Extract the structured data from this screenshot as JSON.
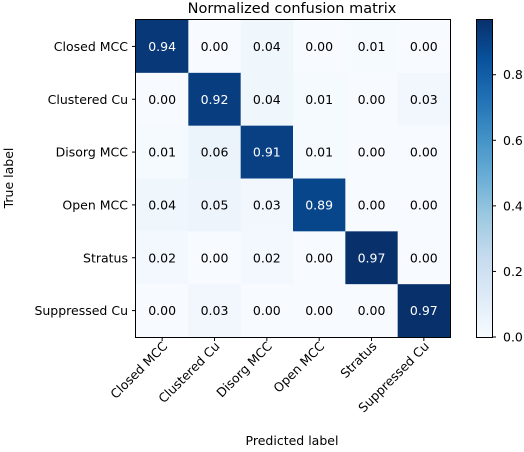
{
  "chart_data": {
    "type": "heatmap",
    "title": "Normalized confusion matrix",
    "xlabel": "Predicted label",
    "ylabel": "True label",
    "row_labels": [
      "Closed MCC",
      "Clustered Cu",
      "Disorg MCC",
      "Open MCC",
      "Stratus",
      "Suppressed Cu"
    ],
    "col_labels": [
      "Closed MCC",
      "Clustered Cu",
      "Disorg MCC",
      "Open MCC",
      "Stratus",
      "Suppressed Cu"
    ],
    "values": [
      [
        0.94,
        0.0,
        0.04,
        0.0,
        0.01,
        0.0
      ],
      [
        0.0,
        0.92,
        0.04,
        0.01,
        0.0,
        0.03
      ],
      [
        0.01,
        0.06,
        0.91,
        0.01,
        0.0,
        0.0
      ],
      [
        0.04,
        0.05,
        0.03,
        0.89,
        0.0,
        0.0
      ],
      [
        0.02,
        0.0,
        0.02,
        0.0,
        0.97,
        0.0
      ],
      [
        0.0,
        0.03,
        0.0,
        0.0,
        0.0,
        0.97
      ]
    ],
    "value_labels": [
      [
        "0.94",
        "0.00",
        "0.04",
        "0.00",
        "0.01",
        "0.00"
      ],
      [
        "0.00",
        "0.92",
        "0.04",
        "0.01",
        "0.00",
        "0.03"
      ],
      [
        "0.01",
        "0.06",
        "0.91",
        "0.01",
        "0.00",
        "0.00"
      ],
      [
        "0.04",
        "0.05",
        "0.03",
        "0.89",
        "0.00",
        "0.00"
      ],
      [
        "0.02",
        "0.00",
        "0.02",
        "0.00",
        "0.97",
        "0.00"
      ],
      [
        "0.00",
        "0.03",
        "0.00",
        "0.00",
        "0.00",
        "0.97"
      ]
    ],
    "colormap": "Blues",
    "colormap_low": "#f7fbff",
    "colormap_high": "#08306b",
    "colorbar": {
      "range": [
        0,
        0.97
      ],
      "ticks": [
        0.0,
        0.2,
        0.4,
        0.6,
        0.8
      ],
      "tick_labels": [
        "0.0",
        "0.2",
        "0.4",
        "0.6",
        "0.8"
      ]
    },
    "text_color_light": "#ffffff",
    "text_color_dark": "#000000",
    "grid": false
  }
}
